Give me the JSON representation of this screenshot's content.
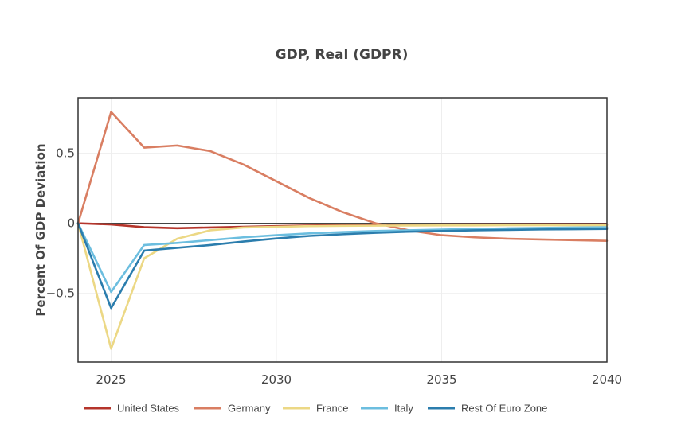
{
  "chart_data": {
    "type": "line",
    "title": "GDP, Real (GDPR)",
    "xlabel": "",
    "ylabel": "Percent Of GDP Deviation",
    "xlim": [
      2024,
      2040
    ],
    "ylim": [
      -0.99,
      0.895
    ],
    "x_ticks": [
      2025,
      2030,
      2035,
      2040
    ],
    "x_tick_labels": [
      "2025",
      "2030",
      "2035",
      "2040"
    ],
    "y_ticks": [
      -0.5,
      0,
      0.5
    ],
    "y_tick_labels": [
      "−0.5",
      "0",
      "0.5"
    ],
    "grid": true,
    "legend_position": "bottom",
    "x": [
      2024,
      2025,
      2026,
      2027,
      2028,
      2029,
      2030,
      2031,
      2032,
      2033,
      2034,
      2035,
      2036,
      2037,
      2038,
      2039,
      2040
    ],
    "series": [
      {
        "name": "United States",
        "color": "#b5352b",
        "values": [
          0,
          -0.008,
          -0.028,
          -0.035,
          -0.03,
          -0.025,
          -0.02,
          -0.016,
          -0.013,
          -0.011,
          -0.01,
          -0.009,
          -0.008,
          -0.008,
          -0.007,
          -0.007,
          -0.007
        ]
      },
      {
        "name": "Germany",
        "color": "#d97e62",
        "values": [
          0,
          0.795,
          0.54,
          0.555,
          0.515,
          0.42,
          0.3,
          0.18,
          0.08,
          0.0,
          -0.05,
          -0.085,
          -0.1,
          -0.11,
          -0.115,
          -0.12,
          -0.125
        ]
      },
      {
        "name": "France",
        "color": "#ecd885",
        "values": [
          0,
          -0.895,
          -0.25,
          -0.11,
          -0.05,
          -0.03,
          -0.025,
          -0.02,
          -0.018,
          -0.017,
          -0.016,
          -0.015,
          -0.015,
          -0.014,
          -0.014,
          -0.014,
          -0.014
        ]
      },
      {
        "name": "Italy",
        "color": "#6cbedf",
        "values": [
          0,
          -0.49,
          -0.155,
          -0.14,
          -0.12,
          -0.1,
          -0.085,
          -0.072,
          -0.063,
          -0.055,
          -0.05,
          -0.045,
          -0.04,
          -0.036,
          -0.033,
          -0.03,
          -0.028
        ]
      },
      {
        "name": "Rest Of Euro Zone",
        "color": "#2b7dad",
        "values": [
          0,
          -0.605,
          -0.195,
          -0.175,
          -0.155,
          -0.13,
          -0.108,
          -0.09,
          -0.078,
          -0.068,
          -0.06,
          -0.055,
          -0.05,
          -0.047,
          -0.044,
          -0.042,
          -0.04
        ]
      }
    ]
  }
}
